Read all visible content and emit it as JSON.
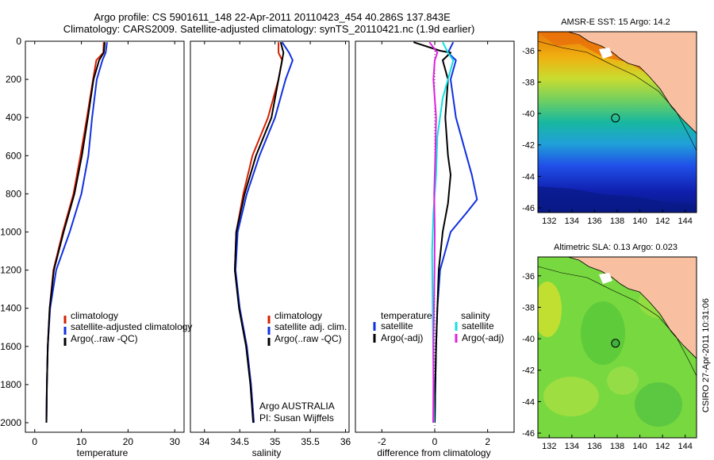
{
  "header": {
    "title_line1": "Argo profile: CS 5901611_148 22-Apr-2011 20110423_454 40.286S 137.843E",
    "title_line2": "Climatology: CARS2009. Satellite-adjusted climatology: synTS_20110421.nc (1.9d earlier)"
  },
  "side_text": "CSIRO 27-Apr-2011 10:31:06",
  "colors": {
    "climatology": "#d62000",
    "satellite": "#1030e0",
    "argo": "#000000",
    "sal_sat": "#10e0e0",
    "sal_argo": "#e020e0"
  },
  "chart_data": [
    {
      "id": "temperature",
      "type": "line",
      "xlabel": "temperature",
      "xlim": [
        -2,
        32
      ],
      "ylim": [
        0,
        2050
      ],
      "y_reversed": true,
      "xticks": [
        0,
        10,
        20,
        30
      ],
      "xtick_labels": [
        "0",
        "10",
        "20",
        "30"
      ],
      "yticks": [
        0,
        200,
        400,
        600,
        800,
        1000,
        1200,
        1400,
        1600,
        1800,
        2000
      ],
      "ytick_labels": [
        "0",
        "200",
        "400",
        "600",
        "800",
        "1000",
        "1200",
        "1400",
        "1600",
        "1800",
        "2000"
      ],
      "legend": [
        "climatology",
        "satellite-adjusted climatology",
        "Argo(..raw -QC)"
      ],
      "series": [
        {
          "name": "climatology",
          "color": "#d62000",
          "points": [
            [
              14.8,
              5
            ],
            [
              14.7,
              60
            ],
            [
              13.2,
              100
            ],
            [
              12.5,
              200
            ],
            [
              11.2,
              400
            ],
            [
              9.8,
              600
            ],
            [
              8.3,
              800
            ],
            [
              6.0,
              1000
            ],
            [
              4.0,
              1200
            ],
            [
              3.2,
              1400
            ],
            [
              2.8,
              1600
            ],
            [
              2.6,
              1800
            ],
            [
              2.5,
              2000
            ]
          ]
        },
        {
          "name": "satellite-adjusted climatology",
          "color": "#1030e0",
          "points": [
            [
              15.5,
              5
            ],
            [
              15.2,
              60
            ],
            [
              14.5,
              100
            ],
            [
              13.3,
              200
            ],
            [
              12.3,
              400
            ],
            [
              11.5,
              600
            ],
            [
              10.0,
              800
            ],
            [
              7.5,
              1000
            ],
            [
              4.6,
              1200
            ],
            [
              3.3,
              1400
            ],
            [
              2.8,
              1600
            ],
            [
              2.6,
              1800
            ],
            [
              2.5,
              2000
            ]
          ]
        },
        {
          "name": "Argo(..raw -QC)",
          "color": "#000000",
          "points": [
            [
              15.0,
              5
            ],
            [
              14.8,
              60
            ],
            [
              13.8,
              100
            ],
            [
              12.6,
              200
            ],
            [
              11.4,
              400
            ],
            [
              10.1,
              600
            ],
            [
              8.5,
              800
            ],
            [
              6.2,
              1000
            ],
            [
              4.1,
              1200
            ],
            [
              3.2,
              1400
            ],
            [
              2.8,
              1600
            ],
            [
              2.6,
              1800
            ],
            [
              2.5,
              2000
            ]
          ]
        }
      ]
    },
    {
      "id": "salinity",
      "type": "line",
      "xlabel": "salinity",
      "xlim": [
        33.8,
        36.05
      ],
      "ylim": [
        0,
        2050
      ],
      "y_reversed": true,
      "xticks": [
        34,
        34.5,
        35,
        35.5,
        36
      ],
      "xtick_labels": [
        "34",
        "34.5",
        "35",
        "35.5",
        "36"
      ],
      "legend": [
        "climatology",
        "satellite adj. clim.",
        "Argo(..raw -QC)"
      ],
      "annotation": [
        "Argo AUSTRALIA",
        "PI: Susan Wijffels"
      ],
      "series": [
        {
          "name": "climatology",
          "color": "#d62000",
          "points": [
            [
              35.05,
              5
            ],
            [
              35.05,
              60
            ],
            [
              35.1,
              100
            ],
            [
              35.05,
              200
            ],
            [
              34.9,
              400
            ],
            [
              34.68,
              600
            ],
            [
              34.55,
              800
            ],
            [
              34.45,
              1000
            ],
            [
              34.43,
              1200
            ],
            [
              34.5,
              1400
            ],
            [
              34.6,
              1600
            ],
            [
              34.66,
              1800
            ],
            [
              34.7,
              2000
            ]
          ]
        },
        {
          "name": "satellite adj. clim.",
          "color": "#1030e0",
          "points": [
            [
              35.1,
              5
            ],
            [
              35.2,
              60
            ],
            [
              35.25,
              100
            ],
            [
              35.15,
              200
            ],
            [
              35.0,
              400
            ],
            [
              34.78,
              600
            ],
            [
              34.6,
              800
            ],
            [
              34.47,
              1000
            ],
            [
              34.44,
              1200
            ],
            [
              34.5,
              1400
            ],
            [
              34.6,
              1600
            ],
            [
              34.66,
              1800
            ],
            [
              34.7,
              2000
            ]
          ]
        },
        {
          "name": "Argo(..raw -QC)",
          "color": "#000000",
          "points": [
            [
              35.08,
              5
            ],
            [
              35.12,
              60
            ],
            [
              35.1,
              100
            ],
            [
              35.05,
              200
            ],
            [
              34.95,
              400
            ],
            [
              34.73,
              600
            ],
            [
              34.57,
              800
            ],
            [
              34.45,
              1000
            ],
            [
              34.43,
              1200
            ],
            [
              34.49,
              1400
            ],
            [
              34.59,
              1600
            ],
            [
              34.65,
              1800
            ],
            [
              34.69,
              2000
            ]
          ]
        }
      ]
    },
    {
      "id": "difference",
      "type": "line",
      "xlabel": "difference from climatology",
      "xlim": [
        -3,
        3
      ],
      "ylim": [
        0,
        2050
      ],
      "y_reversed": true,
      "xticks": [
        -2,
        0,
        2
      ],
      "xtick_labels": [
        "-2",
        "0",
        "2"
      ],
      "legend_groups": [
        {
          "title": "temperature",
          "entries": [
            "satellite",
            "Argo(-adj)"
          ]
        },
        {
          "title": "salinity",
          "entries": [
            "satellite",
            "Argo(-adj)"
          ]
        }
      ],
      "series": [
        {
          "name": "temperature satellite",
          "color": "#1030e0",
          "points": [
            [
              0.7,
              5
            ],
            [
              0.5,
              60
            ],
            [
              0.8,
              100
            ],
            [
              0.6,
              200
            ],
            [
              0.8,
              400
            ],
            [
              1.2,
              600
            ],
            [
              1.4,
              700
            ],
            [
              1.6,
              830
            ],
            [
              1.2,
              900
            ],
            [
              0.6,
              1000
            ],
            [
              0.2,
              1200
            ],
            [
              0.1,
              1400
            ],
            [
              0.05,
              1600
            ],
            [
              0.02,
              1800
            ],
            [
              0.0,
              2000
            ]
          ]
        },
        {
          "name": "temperature Argo(-adj)",
          "color": "#000000",
          "points": [
            [
              -0.8,
              5
            ],
            [
              0.2,
              50
            ],
            [
              0.6,
              60
            ],
            [
              0.3,
              100
            ],
            [
              0.5,
              200
            ],
            [
              0.4,
              400
            ],
            [
              0.5,
              600
            ],
            [
              0.6,
              700
            ],
            [
              0.5,
              850
            ],
            [
              0.3,
              1000
            ],
            [
              0.15,
              1200
            ],
            [
              0.1,
              1400
            ],
            [
              0.05,
              1600
            ],
            [
              0.02,
              1800
            ],
            [
              0.0,
              2000
            ]
          ]
        },
        {
          "name": "salinity satellite",
          "color": "#10e0e0",
          "points": [
            [
              0.3,
              5
            ],
            [
              0.5,
              60
            ],
            [
              0.7,
              100
            ],
            [
              0.6,
              150
            ],
            [
              0.3,
              300
            ],
            [
              0.1,
              500
            ],
            [
              0.05,
              700
            ],
            [
              -0.05,
              900
            ],
            [
              -0.1,
              1100
            ],
            [
              -0.08,
              1400
            ],
            [
              -0.05,
              1700
            ],
            [
              -0.03,
              2000
            ]
          ]
        },
        {
          "name": "salinity Argo(-adj)",
          "color": "#e020e0",
          "points": [
            [
              -0.2,
              5
            ],
            [
              0.1,
              60
            ],
            [
              0.0,
              100
            ],
            [
              -0.05,
              200
            ],
            [
              0.05,
              400
            ],
            [
              0.02,
              600
            ],
            [
              -0.02,
              800
            ],
            [
              0.0,
              1000
            ],
            [
              -0.01,
              1200
            ],
            [
              -0.03,
              1400
            ],
            [
              -0.05,
              1600
            ],
            [
              -0.05,
              1800
            ],
            [
              -0.06,
              2000
            ]
          ]
        }
      ]
    },
    {
      "id": "sst_map",
      "type": "heatmap",
      "title": "AMSR-E SST: 15 Argo: 14.2",
      "xlim": [
        131,
        145
      ],
      "ylim": [
        -46.3,
        -34.8
      ],
      "xticks": [
        132,
        134,
        136,
        138,
        140,
        142,
        144
      ],
      "xtick_labels": [
        "132",
        "134",
        "136",
        "138",
        "140",
        "142",
        "144"
      ],
      "yticks": [
        -36,
        -38,
        -40,
        -42,
        -44,
        -46
      ],
      "ytick_labels": [
        "-36",
        "-38",
        "-40",
        "-42",
        "-44",
        "-46"
      ],
      "marker": {
        "lon": 137.843,
        "lat": -40.286
      }
    },
    {
      "id": "sla_map",
      "type": "heatmap",
      "title": "Altimetric SLA: 0.13 Argo: 0.023",
      "xlim": [
        131,
        145
      ],
      "ylim": [
        -46.3,
        -34.8
      ],
      "xticks": [
        132,
        134,
        136,
        138,
        140,
        142,
        144
      ],
      "xtick_labels": [
        "132",
        "134",
        "136",
        "138",
        "140",
        "142",
        "144"
      ],
      "yticks": [
        -36,
        -38,
        -40,
        -42,
        -44,
        -46
      ],
      "ytick_labels": [
        "-36",
        "-38",
        "-40",
        "-42",
        "-44",
        "-46"
      ],
      "marker": {
        "lon": 137.843,
        "lat": -40.286
      }
    }
  ]
}
